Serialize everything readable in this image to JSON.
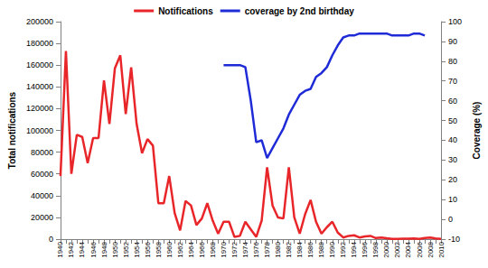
{
  "chart_data": {
    "type": "line",
    "categories": [
      1940,
      null,
      1942,
      null,
      1944,
      null,
      1946,
      null,
      1948,
      null,
      1950,
      null,
      1952,
      null,
      1954,
      null,
      1956,
      null,
      1958,
      null,
      1960,
      null,
      1962,
      null,
      1964,
      null,
      1966,
      null,
      1968,
      null,
      1970,
      null,
      1972,
      null,
      1974,
      null,
      1976,
      null,
      1978,
      null,
      1980,
      null,
      1982,
      null,
      1984,
      null,
      1986,
      null,
      1988,
      null,
      1990,
      null,
      1992,
      null,
      1994,
      null,
      1996,
      null,
      1998,
      null,
      2000,
      null,
      2002,
      null,
      2004,
      null,
      2006,
      null,
      2008,
      null,
      2010
    ],
    "series": [
      {
        "name": "Notifications",
        "color": "#e8262a",
        "values": [
          58000,
          173000,
          60000,
          96000,
          94000,
          70000,
          93000,
          93000,
          146000,
          106000,
          157000,
          169000,
          115000,
          158000,
          106000,
          79000,
          92000,
          86000,
          33000,
          33000,
          58000,
          24000,
          8000,
          35000,
          31000,
          13000,
          19000,
          33000,
          17000,
          5000,
          16000,
          16000,
          2000,
          3000,
          16000,
          9000,
          2000,
          17000,
          66000,
          31000,
          20000,
          19000,
          66000,
          20000,
          5000,
          23000,
          36000,
          16000,
          5000,
          11000,
          16000,
          6000,
          1500,
          3000,
          3500,
          1500,
          2500,
          3000,
          1000,
          1500,
          800,
          300,
          300,
          400,
          500,
          700,
          300,
          1000,
          1500,
          700,
          300
        ]
      },
      {
        "name": "coverage by 2nd birthday",
        "color": "#1f2bd6",
        "axis": "y2",
        "values": [
          null,
          null,
          null,
          null,
          null,
          null,
          null,
          null,
          null,
          null,
          null,
          null,
          null,
          null,
          null,
          null,
          null,
          null,
          null,
          null,
          null,
          null,
          null,
          null,
          null,
          null,
          null,
          null,
          null,
          null,
          78,
          78,
          78,
          78,
          77,
          60,
          39,
          40,
          31,
          36,
          41,
          46,
          53,
          58,
          63,
          65,
          66,
          72,
          74,
          77,
          83,
          88,
          92,
          93,
          93,
          94,
          94,
          94,
          94,
          94,
          94,
          93,
          93,
          93,
          93,
          94,
          94,
          93,
          null,
          null,
          null
        ]
      }
    ],
    "y_label": "Total notifications",
    "y2_label": "Coverage (%)",
    "ylim": [
      0,
      200000
    ],
    "yticks": [
      0,
      20000,
      40000,
      60000,
      80000,
      100000,
      120000,
      140000,
      160000,
      180000,
      200000
    ],
    "y2lim": [
      -10,
      100
    ],
    "y2ticks": [
      -10,
      0,
      10,
      20,
      30,
      40,
      50,
      60,
      70,
      80,
      90,
      100
    ],
    "legend": "top",
    "grid": false
  }
}
